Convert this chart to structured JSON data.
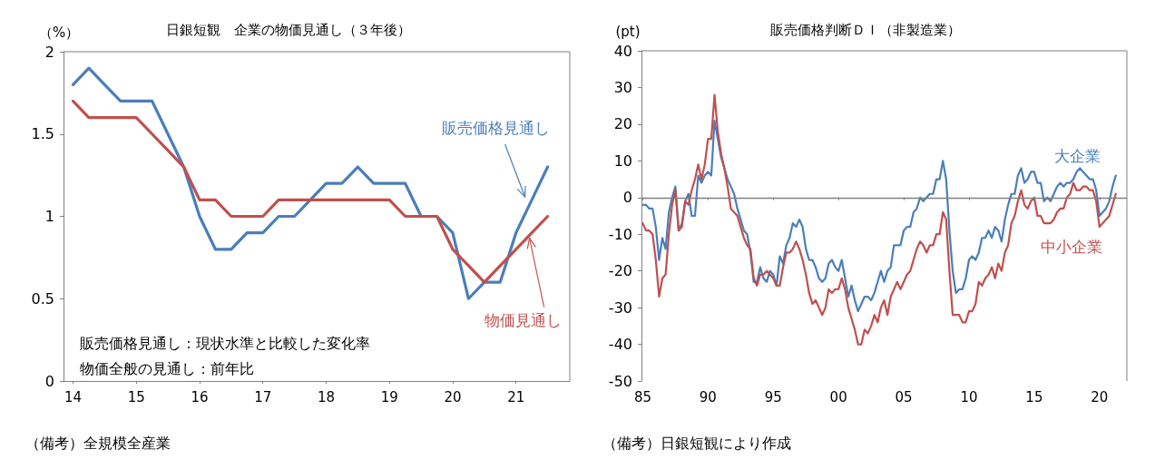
{
  "chart_data": [
    {
      "type": "line",
      "title": "日銀短観　企業の物価見通し（３年後）",
      "ylabel": "（%）",
      "x": [
        14,
        14.25,
        14.5,
        14.75,
        15,
        15.25,
        15.5,
        15.75,
        16,
        16.25,
        16.5,
        16.75,
        17,
        17.25,
        17.5,
        17.75,
        18,
        18.25,
        18.5,
        18.75,
        19,
        19.25,
        19.5,
        19.75,
        20,
        20.25,
        20.5,
        20.75,
        21,
        21.25,
        21.5
      ],
      "series": [
        {
          "name": "販売価格見通し",
          "color": "#4a7ebb",
          "values": [
            1.8,
            1.9,
            1.8,
            1.7,
            1.7,
            1.7,
            1.5,
            1.3,
            1.0,
            0.8,
            0.8,
            0.9,
            0.9,
            1.0,
            1.0,
            1.1,
            1.2,
            1.2,
            1.3,
            1.2,
            1.2,
            1.2,
            1.0,
            1.0,
            0.9,
            0.5,
            0.6,
            0.6,
            0.9,
            1.1,
            1.3
          ]
        },
        {
          "name": "物価見通し",
          "color": "#c0504d",
          "values": [
            1.7,
            1.6,
            1.6,
            1.6,
            1.6,
            1.5,
            1.4,
            1.3,
            1.1,
            1.1,
            1.0,
            1.0,
            1.0,
            1.1,
            1.1,
            1.1,
            1.1,
            1.1,
            1.1,
            1.1,
            1.1,
            1.0,
            1.0,
            1.0,
            0.8,
            0.7,
            0.6,
            0.7,
            0.8,
            0.9,
            1.0
          ]
        }
      ],
      "xlim": [
        13.85,
        21.85
      ],
      "xticks": [
        14,
        15,
        16,
        17,
        18,
        19,
        20,
        21
      ],
      "ylim": [
        0,
        2
      ],
      "yticks": [
        0,
        0.5,
        1,
        1.5,
        2
      ],
      "grid": false,
      "legend": false,
      "marker": "none",
      "line_style": "solid",
      "annotations": [
        "販売価格見通し：現状水準と比較した変化率",
        "物価全般の見通し：前年比",
        "（備考）全規模全産業"
      ]
    },
    {
      "type": "line",
      "title": "販売価格判断ＤＩ（非製造業）",
      "ylabel": "(pt)",
      "x": [
        1985,
        1985.25,
        1985.5,
        1985.75,
        1986,
        1986.25,
        1986.5,
        1986.75,
        1987,
        1987.25,
        1987.5,
        1987.75,
        1988,
        1988.25,
        1988.5,
        1988.75,
        1989,
        1989.25,
        1989.5,
        1989.75,
        1990,
        1990.25,
        1990.5,
        1990.75,
        1991,
        1991.25,
        1991.5,
        1991.75,
        1992,
        1992.25,
        1992.5,
        1992.75,
        1993,
        1993.25,
        1993.5,
        1993.75,
        1994,
        1994.25,
        1994.5,
        1994.75,
        1995,
        1995.25,
        1995.5,
        1995.75,
        1996,
        1996.25,
        1996.5,
        1996.75,
        1997,
        1997.25,
        1997.5,
        1997.75,
        1998,
        1998.25,
        1998.5,
        1998.75,
        1999,
        1999.25,
        1999.5,
        1999.75,
        2000,
        2000.25,
        2000.5,
        2000.75,
        2001,
        2001.25,
        2001.5,
        2001.75,
        2002,
        2002.25,
        2002.5,
        2002.75,
        2003,
        2003.25,
        2003.5,
        2003.75,
        2004,
        2004.25,
        2004.5,
        2004.75,
        2005,
        2005.25,
        2005.5,
        2005.75,
        2006,
        2006.25,
        2006.5,
        2006.75,
        2007,
        2007.25,
        2007.5,
        2007.75,
        2008,
        2008.25,
        2008.5,
        2008.75,
        2009,
        2009.25,
        2009.5,
        2009.75,
        2010,
        2010.25,
        2010.5,
        2010.75,
        2011,
        2011.25,
        2011.5,
        2011.75,
        2012,
        2012.25,
        2012.5,
        2012.75,
        2013,
        2013.25,
        2013.5,
        2013.75,
        2014,
        2014.25,
        2014.5,
        2014.75,
        2015,
        2015.25,
        2015.5,
        2015.75,
        2016,
        2016.25,
        2016.5,
        2016.75,
        2017,
        2017.25,
        2017.5,
        2017.75,
        2018,
        2018.25,
        2018.5,
        2018.75,
        2019,
        2019.25,
        2019.5,
        2019.75,
        2020,
        2020.25,
        2020.5,
        2020.75,
        2021,
        2021.25
      ],
      "series": [
        {
          "name": "大企業",
          "color": "#4a7ebb",
          "values": [
            -2,
            -2,
            -3,
            -3,
            -8,
            -17,
            -11,
            -14,
            -4,
            0,
            3,
            -9,
            -7,
            -1,
            1,
            -5,
            -5,
            6,
            4,
            6,
            7,
            6,
            21,
            16,
            11,
            8,
            5,
            3,
            1,
            -3,
            -6,
            -9,
            -10,
            -15,
            -23,
            -23,
            -19,
            -22,
            -23,
            -20,
            -21,
            -24,
            -16,
            -18,
            -13,
            -11,
            -7,
            -8,
            -6,
            -8,
            -14,
            -17,
            -17,
            -19,
            -22,
            -23,
            -22,
            -18,
            -17,
            -19,
            -20,
            -17,
            -22,
            -27,
            -24,
            -28,
            -31,
            -29,
            -27,
            -27,
            -28,
            -26,
            -23,
            -20,
            -23,
            -20,
            -19,
            -13,
            -13,
            -13,
            -9,
            -8,
            -8,
            -4,
            -3,
            0,
            -1,
            0,
            1,
            1,
            5,
            5,
            10,
            5,
            -9,
            -20,
            -26,
            -25,
            -25,
            -22,
            -17,
            -16,
            -17,
            -15,
            -11,
            -11,
            -9,
            -11,
            -8,
            -9,
            -12,
            -6,
            -2,
            1,
            1,
            6,
            8,
            4,
            5,
            7,
            7,
            4,
            4,
            -1,
            0,
            -1,
            1,
            3,
            4,
            3,
            4,
            4,
            5,
            7,
            8,
            7,
            6,
            5,
            5,
            2,
            -5,
            -4,
            -3,
            -1,
            3,
            6
          ]
        },
        {
          "name": "中小企業",
          "color": "#c0504d",
          "values": [
            -7,
            -9,
            -9,
            -10,
            -17,
            -27,
            -22,
            -21,
            -10,
            -2,
            2,
            -9,
            -8,
            -1,
            -2,
            2,
            5,
            9,
            5,
            9,
            16,
            16,
            28,
            18,
            12,
            8,
            3,
            -3,
            -4,
            -5,
            -8,
            -11,
            -13,
            -14,
            -22,
            -24,
            -21,
            -21,
            -20,
            -21,
            -22,
            -24,
            -24,
            -19,
            -15,
            -15,
            -14,
            -12,
            -14,
            -17,
            -21,
            -26,
            -29,
            -28,
            -30,
            -32,
            -30,
            -25,
            -26,
            -25,
            -25,
            -22,
            -25,
            -30,
            -33,
            -36,
            -40,
            -40,
            -36,
            -37,
            -35,
            -32,
            -34,
            -30,
            -28,
            -32,
            -27,
            -25,
            -23,
            -25,
            -23,
            -21,
            -20,
            -17,
            -14,
            -12,
            -13,
            -15,
            -13,
            -13,
            -10,
            -10,
            -4,
            -6,
            -20,
            -32,
            -32,
            -32,
            -34,
            -34,
            -31,
            -31,
            -29,
            -23,
            -24,
            -22,
            -21,
            -19,
            -22,
            -18,
            -20,
            -15,
            -13,
            -7,
            -5,
            -1,
            2,
            -2,
            -3,
            -1,
            0,
            -5,
            -5,
            -7,
            -7,
            -7,
            -6,
            -4,
            -3,
            -3,
            0,
            1,
            4,
            2,
            2,
            3,
            3,
            2,
            2,
            -1,
            -8,
            -7,
            -6,
            -5,
            -2,
            1
          ]
        }
      ],
      "xlim": [
        1984.9,
        2022.1
      ],
      "xticks": [
        {
          "value": 1985,
          "label": "85"
        },
        {
          "value": 1990,
          "label": "90"
        },
        {
          "value": 1995,
          "label": "95"
        },
        {
          "value": 2000,
          "label": "00"
        },
        {
          "value": 2005,
          "label": "05"
        },
        {
          "value": 2010,
          "label": "10"
        },
        {
          "value": 2015,
          "label": "15"
        },
        {
          "value": 2020,
          "label": "20"
        }
      ],
      "ylim": [
        -50,
        40
      ],
      "yticks": [
        -50,
        -40,
        -30,
        -20,
        -10,
        0,
        10,
        20,
        30,
        40
      ],
      "grid": false,
      "legend": false,
      "marker": "none",
      "line_style": "solid",
      "ref_lines": [
        {
          "axis": "y",
          "value": 0,
          "color": "#808080"
        }
      ],
      "annotations": [
        "（備考）日銀短観により作成"
      ]
    }
  ]
}
